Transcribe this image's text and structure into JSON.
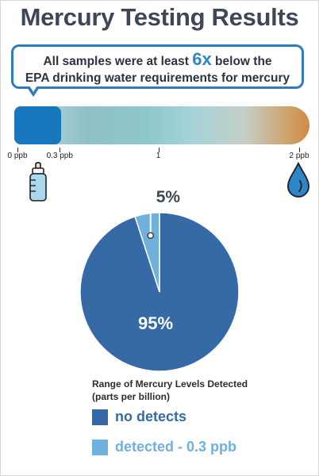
{
  "title": "Mercury Testing Results",
  "callout": {
    "prefix": "All samples were at least ",
    "highlight": "6x",
    "suffix": " below the",
    "line2": "EPA drinking water requirements for mercury"
  },
  "scale": {
    "min": 0,
    "max": 2,
    "marker_value": 0.3,
    "ticks": [
      {
        "value": 0,
        "label": "0 ppb"
      },
      {
        "value": 0.3,
        "label": "0.3 ppb"
      },
      {
        "value": 1,
        "label": "1"
      },
      {
        "value": 2,
        "label": "2 ppb"
      }
    ],
    "colors": {
      "fill": "#1877bd",
      "gradient_start": "#c6d8e2",
      "gradient_end": "#d08b46"
    },
    "icons": [
      "baby-bottle-icon",
      "water-drop-icon"
    ]
  },
  "chart_data": {
    "type": "pie",
    "labels": [
      "no detects",
      "detected - 0.3 ppb"
    ],
    "values": [
      95,
      5
    ],
    "value_labels": [
      "95%",
      "5%"
    ],
    "colors": [
      "#356aa6",
      "#6fb0dd"
    ],
    "legend_title_line1": "Range of Mercury Levels Detected",
    "legend_title_line2": "(parts per billion)",
    "legend_placement": "bottom"
  }
}
